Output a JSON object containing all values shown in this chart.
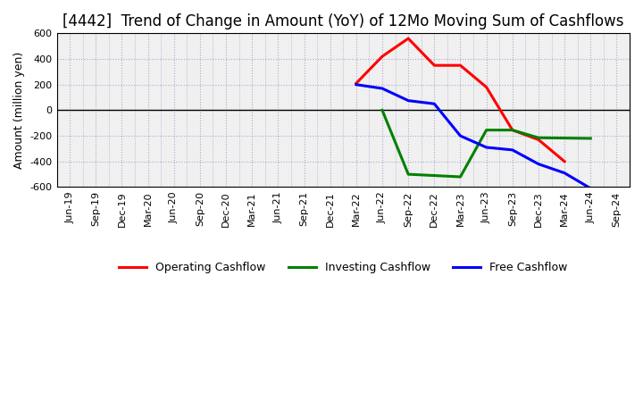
{
  "title": "[4442]  Trend of Change in Amount (YoY) of 12Mo Moving Sum of Cashflows",
  "ylabel": "Amount (million yen)",
  "ylim": [
    -600,
    600
  ],
  "yticks": [
    -600,
    -400,
    -200,
    0,
    200,
    400,
    600
  ],
  "plot_bg_color": "#f0f0f0",
  "fig_bg_color": "#ffffff",
  "grid_color": "#aaaacc",
  "x_labels": [
    "Jun-19",
    "Sep-19",
    "Dec-19",
    "Mar-20",
    "Jun-20",
    "Sep-20",
    "Dec-20",
    "Mar-21",
    "Jun-21",
    "Sep-21",
    "Dec-21",
    "Mar-22",
    "Jun-22",
    "Sep-22",
    "Dec-22",
    "Mar-23",
    "Jun-23",
    "Sep-23",
    "Dec-23",
    "Mar-24",
    "Jun-24",
    "Sep-24"
  ],
  "operating": {
    "color": "#ff0000",
    "label": "Operating Cashflow",
    "points": {
      "Mar-22": 210,
      "Jun-22": 420,
      "Sep-22": 560,
      "Dec-22": 350,
      "Mar-23": 350,
      "Jun-23": 180,
      "Sep-23": -155,
      "Dec-23": -230,
      "Mar-24": -400
    }
  },
  "investing": {
    "color": "#008000",
    "label": "Investing Cashflow",
    "points": {
      "Jun-22": 0,
      "Sep-22": -500,
      "Dec-22": -510,
      "Mar-23": -520,
      "Jun-23": -155,
      "Sep-23": -155,
      "Dec-23": -215,
      "Jun-24": -220
    }
  },
  "free": {
    "color": "#0000ff",
    "label": "Free Cashflow",
    "points": {
      "Mar-22": 200,
      "Jun-22": 170,
      "Sep-22": 75,
      "Dec-22": 50,
      "Mar-23": -200,
      "Jun-23": -290,
      "Sep-23": -310,
      "Dec-23": -420,
      "Mar-24": -490,
      "Jun-24": -610
    }
  },
  "line_width": 2.2,
  "title_fontsize": 12,
  "legend_fontsize": 9,
  "axis_label_fontsize": 9,
  "tick_fontsize": 8
}
